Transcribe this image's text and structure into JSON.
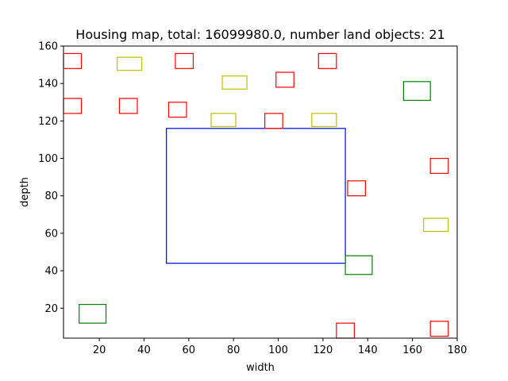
{
  "chart_data": {
    "type": "rectangles",
    "title": "Housing map, total: 16099980.0, number land objects: 21",
    "xlabel": "width",
    "ylabel": "depth",
    "xlim": [
      4,
      180
    ],
    "ylim": [
      4,
      160
    ],
    "xticks": [
      20,
      40,
      60,
      80,
      100,
      120,
      140,
      160,
      180
    ],
    "yticks": [
      20,
      40,
      60,
      80,
      100,
      120,
      140,
      160
    ],
    "grid": false,
    "colors": {
      "red": "#ff0000",
      "yellow": "#bfbf00",
      "green": "#008000",
      "blue": "#0000ff"
    },
    "rects": [
      {
        "x0": 50,
        "x1": 130,
        "y0": 44,
        "y1": 116,
        "color": "blue"
      },
      {
        "x0": 4,
        "x1": 12,
        "y0": 148,
        "y1": 156,
        "color": "red"
      },
      {
        "x0": 4,
        "x1": 12,
        "y0": 124,
        "y1": 132,
        "color": "red"
      },
      {
        "x0": 29,
        "x1": 37,
        "y0": 124,
        "y1": 132,
        "color": "red"
      },
      {
        "x0": 54,
        "x1": 62,
        "y0": 148,
        "y1": 156,
        "color": "red"
      },
      {
        "x0": 51,
        "x1": 59,
        "y0": 122,
        "y1": 130,
        "color": "red"
      },
      {
        "x0": 99,
        "x1": 107,
        "y0": 138,
        "y1": 146,
        "color": "red"
      },
      {
        "x0": 94,
        "x1": 102,
        "y0": 116,
        "y1": 124,
        "color": "red"
      },
      {
        "x0": 118,
        "x1": 126,
        "y0": 148,
        "y1": 156,
        "color": "red"
      },
      {
        "x0": 131,
        "x1": 139,
        "y0": 80,
        "y1": 88,
        "color": "red"
      },
      {
        "x0": 168,
        "x1": 176,
        "y0": 92,
        "y1": 100,
        "color": "red"
      },
      {
        "x0": 126,
        "x1": 134,
        "y0": 4,
        "y1": 12,
        "color": "red"
      },
      {
        "x0": 168,
        "x1": 176,
        "y0": 5,
        "y1": 13,
        "color": "red"
      },
      {
        "x0": 28,
        "x1": 39,
        "y0": 147,
        "y1": 154,
        "color": "yellow"
      },
      {
        "x0": 75,
        "x1": 86,
        "y0": 137,
        "y1": 144,
        "color": "yellow"
      },
      {
        "x0": 70,
        "x1": 81,
        "y0": 117,
        "y1": 124,
        "color": "yellow"
      },
      {
        "x0": 115,
        "x1": 126,
        "y0": 117,
        "y1": 124,
        "color": "yellow"
      },
      {
        "x0": 165,
        "x1": 176,
        "y0": 61,
        "y1": 68,
        "color": "yellow"
      },
      {
        "x0": 156,
        "x1": 168,
        "y0": 131,
        "y1": 141,
        "color": "green"
      },
      {
        "x0": 130,
        "x1": 142,
        "y0": 38,
        "y1": 48,
        "color": "green"
      },
      {
        "x0": 11,
        "x1": 23,
        "y0": 12,
        "y1": 22,
        "color": "green"
      }
    ]
  }
}
